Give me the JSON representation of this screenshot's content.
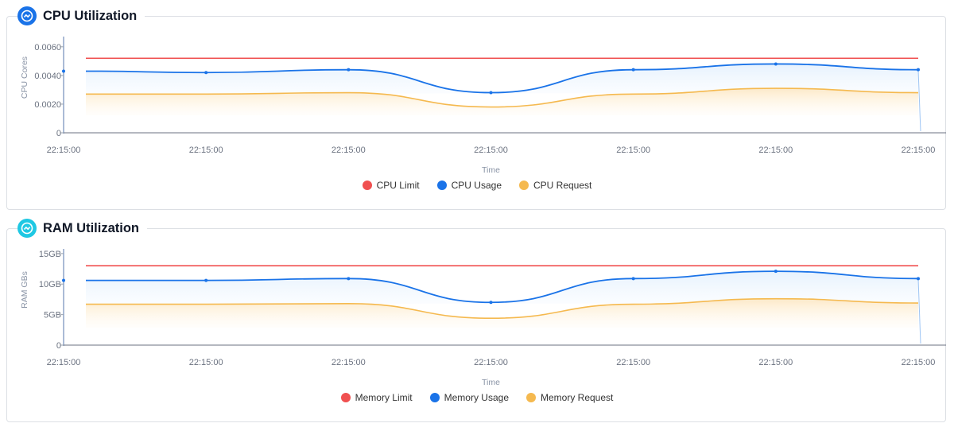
{
  "chart_data": [
    {
      "type": "area",
      "title": "CPU Utilization",
      "xlabel": "Time",
      "ylabel": "CPU Cores",
      "categories": [
        "22:15:00",
        "22:15:00",
        "22:15:00",
        "22:15:00",
        "22:15:00",
        "22:15:00",
        "22:15:00"
      ],
      "y_ticks": [
        "0",
        "0.0020",
        "0.0040",
        "0.0060"
      ],
      "ylim": [
        0,
        0.0066
      ],
      "grid": false,
      "legend_position": "bottom",
      "series": [
        {
          "name": "CPU Limit",
          "color": "#f05050",
          "values": [
            0.0052,
            0.0052,
            0.0052,
            0.0052,
            0.0052,
            0.0052,
            0.0052
          ]
        },
        {
          "name": "CPU Usage",
          "color": "#1a73e8",
          "values": [
            0.0043,
            0.0042,
            0.0044,
            0.0028,
            0.0044,
            0.0048,
            0.0044
          ]
        },
        {
          "name": "CPU Request",
          "color": "#f5b94f",
          "values": [
            0.0027,
            0.0027,
            0.0028,
            0.0018,
            0.0027,
            0.0031,
            0.0028
          ]
        }
      ]
    },
    {
      "type": "area",
      "title": "RAM Utilization",
      "xlabel": "Time",
      "ylabel": "RAM GBs",
      "categories": [
        "22:15:00",
        "22:15:00",
        "22:15:00",
        "22:15:00",
        "22:15:00",
        "22:15:00",
        "22:15:00"
      ],
      "y_ticks": [
        "0",
        "5GB",
        "10GB",
        "15GB"
      ],
      "ylim": [
        0,
        15.5
      ],
      "grid": false,
      "legend_position": "bottom",
      "series": [
        {
          "name": "Memory Limit",
          "color": "#f05050",
          "values": [
            13,
            13,
            13,
            13,
            13,
            13,
            13
          ]
        },
        {
          "name": "Memory Usage",
          "color": "#1a73e8",
          "values": [
            10.6,
            10.6,
            10.9,
            7.0,
            10.9,
            12.1,
            10.9
          ]
        },
        {
          "name": "Memory Request",
          "color": "#f5b94f",
          "values": [
            6.7,
            6.7,
            6.8,
            4.4,
            6.7,
            7.6,
            6.9
          ]
        }
      ]
    }
  ]
}
